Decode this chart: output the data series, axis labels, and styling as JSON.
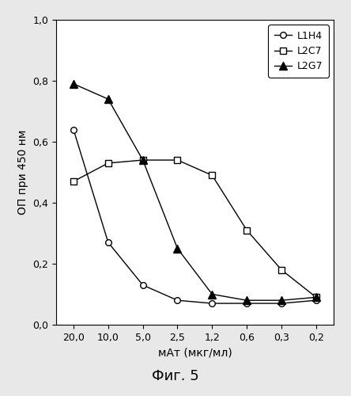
{
  "title": "",
  "xlabel": "мАт (мкг/мл)",
  "ylabel": "ОП при 450 нм",
  "caption": "Фиг. 5",
  "x_ticks_labels": [
    "20,0",
    "10,0",
    "5,0",
    "2,5",
    "1,2",
    "0,6",
    "0,3",
    "0,2"
  ],
  "x_values": [
    0,
    1,
    2,
    3,
    4,
    5,
    6,
    7
  ],
  "L1H4": [
    0.64,
    0.27,
    0.13,
    0.08,
    0.07,
    0.07,
    0.07,
    0.08
  ],
  "L2C7": [
    0.47,
    0.53,
    0.54,
    0.54,
    0.49,
    0.31,
    0.18,
    0.09
  ],
  "L2G7": [
    0.79,
    0.74,
    0.54,
    0.25,
    0.1,
    0.08,
    0.08,
    0.09
  ],
  "ylim": [
    0.0,
    1.0
  ],
  "yticks": [
    0.0,
    0.2,
    0.4,
    0.6,
    0.8,
    1.0
  ],
  "ytick_labels": [
    "0,0",
    "0,2",
    "0,4",
    "0,6",
    "0,8",
    "1,0"
  ],
  "line_color": "#000000",
  "bg_color": "#e8e8e8",
  "plot_bg_color": "#ffffff",
  "legend_labels": [
    "L1H4",
    "L2C7",
    "L2G7"
  ],
  "font_size_ticks": 9,
  "font_size_labels": 10,
  "font_size_caption": 13,
  "font_size_legend": 9
}
